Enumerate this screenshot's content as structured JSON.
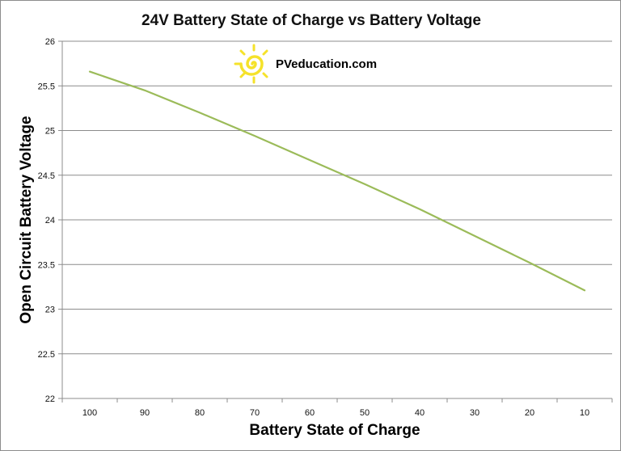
{
  "chart_data": {
    "type": "line",
    "title": "24V Battery State of Charge vs Battery Voltage",
    "xlabel": "Battery State of Charge",
    "ylabel": "Open Circuit Battery Voltage",
    "categories": [
      "100",
      "90",
      "80",
      "70",
      "60",
      "50",
      "40",
      "30",
      "20",
      "10"
    ],
    "series": [
      {
        "values": [
          25.66,
          25.45,
          25.2,
          24.94,
          24.67,
          24.4,
          24.12,
          23.82,
          23.52,
          23.21
        ],
        "color": "#9bbb59"
      }
    ],
    "ylim": [
      22,
      26
    ],
    "yticks": [
      "22",
      "22.5",
      "23",
      "23.5",
      "24",
      "24.5",
      "25",
      "25.5",
      "26"
    ],
    "grid": true,
    "legend": "none"
  },
  "logo": {
    "text": "PVeducation.com",
    "icon": "sun-spiral-icon",
    "color": "#f5e22a"
  }
}
